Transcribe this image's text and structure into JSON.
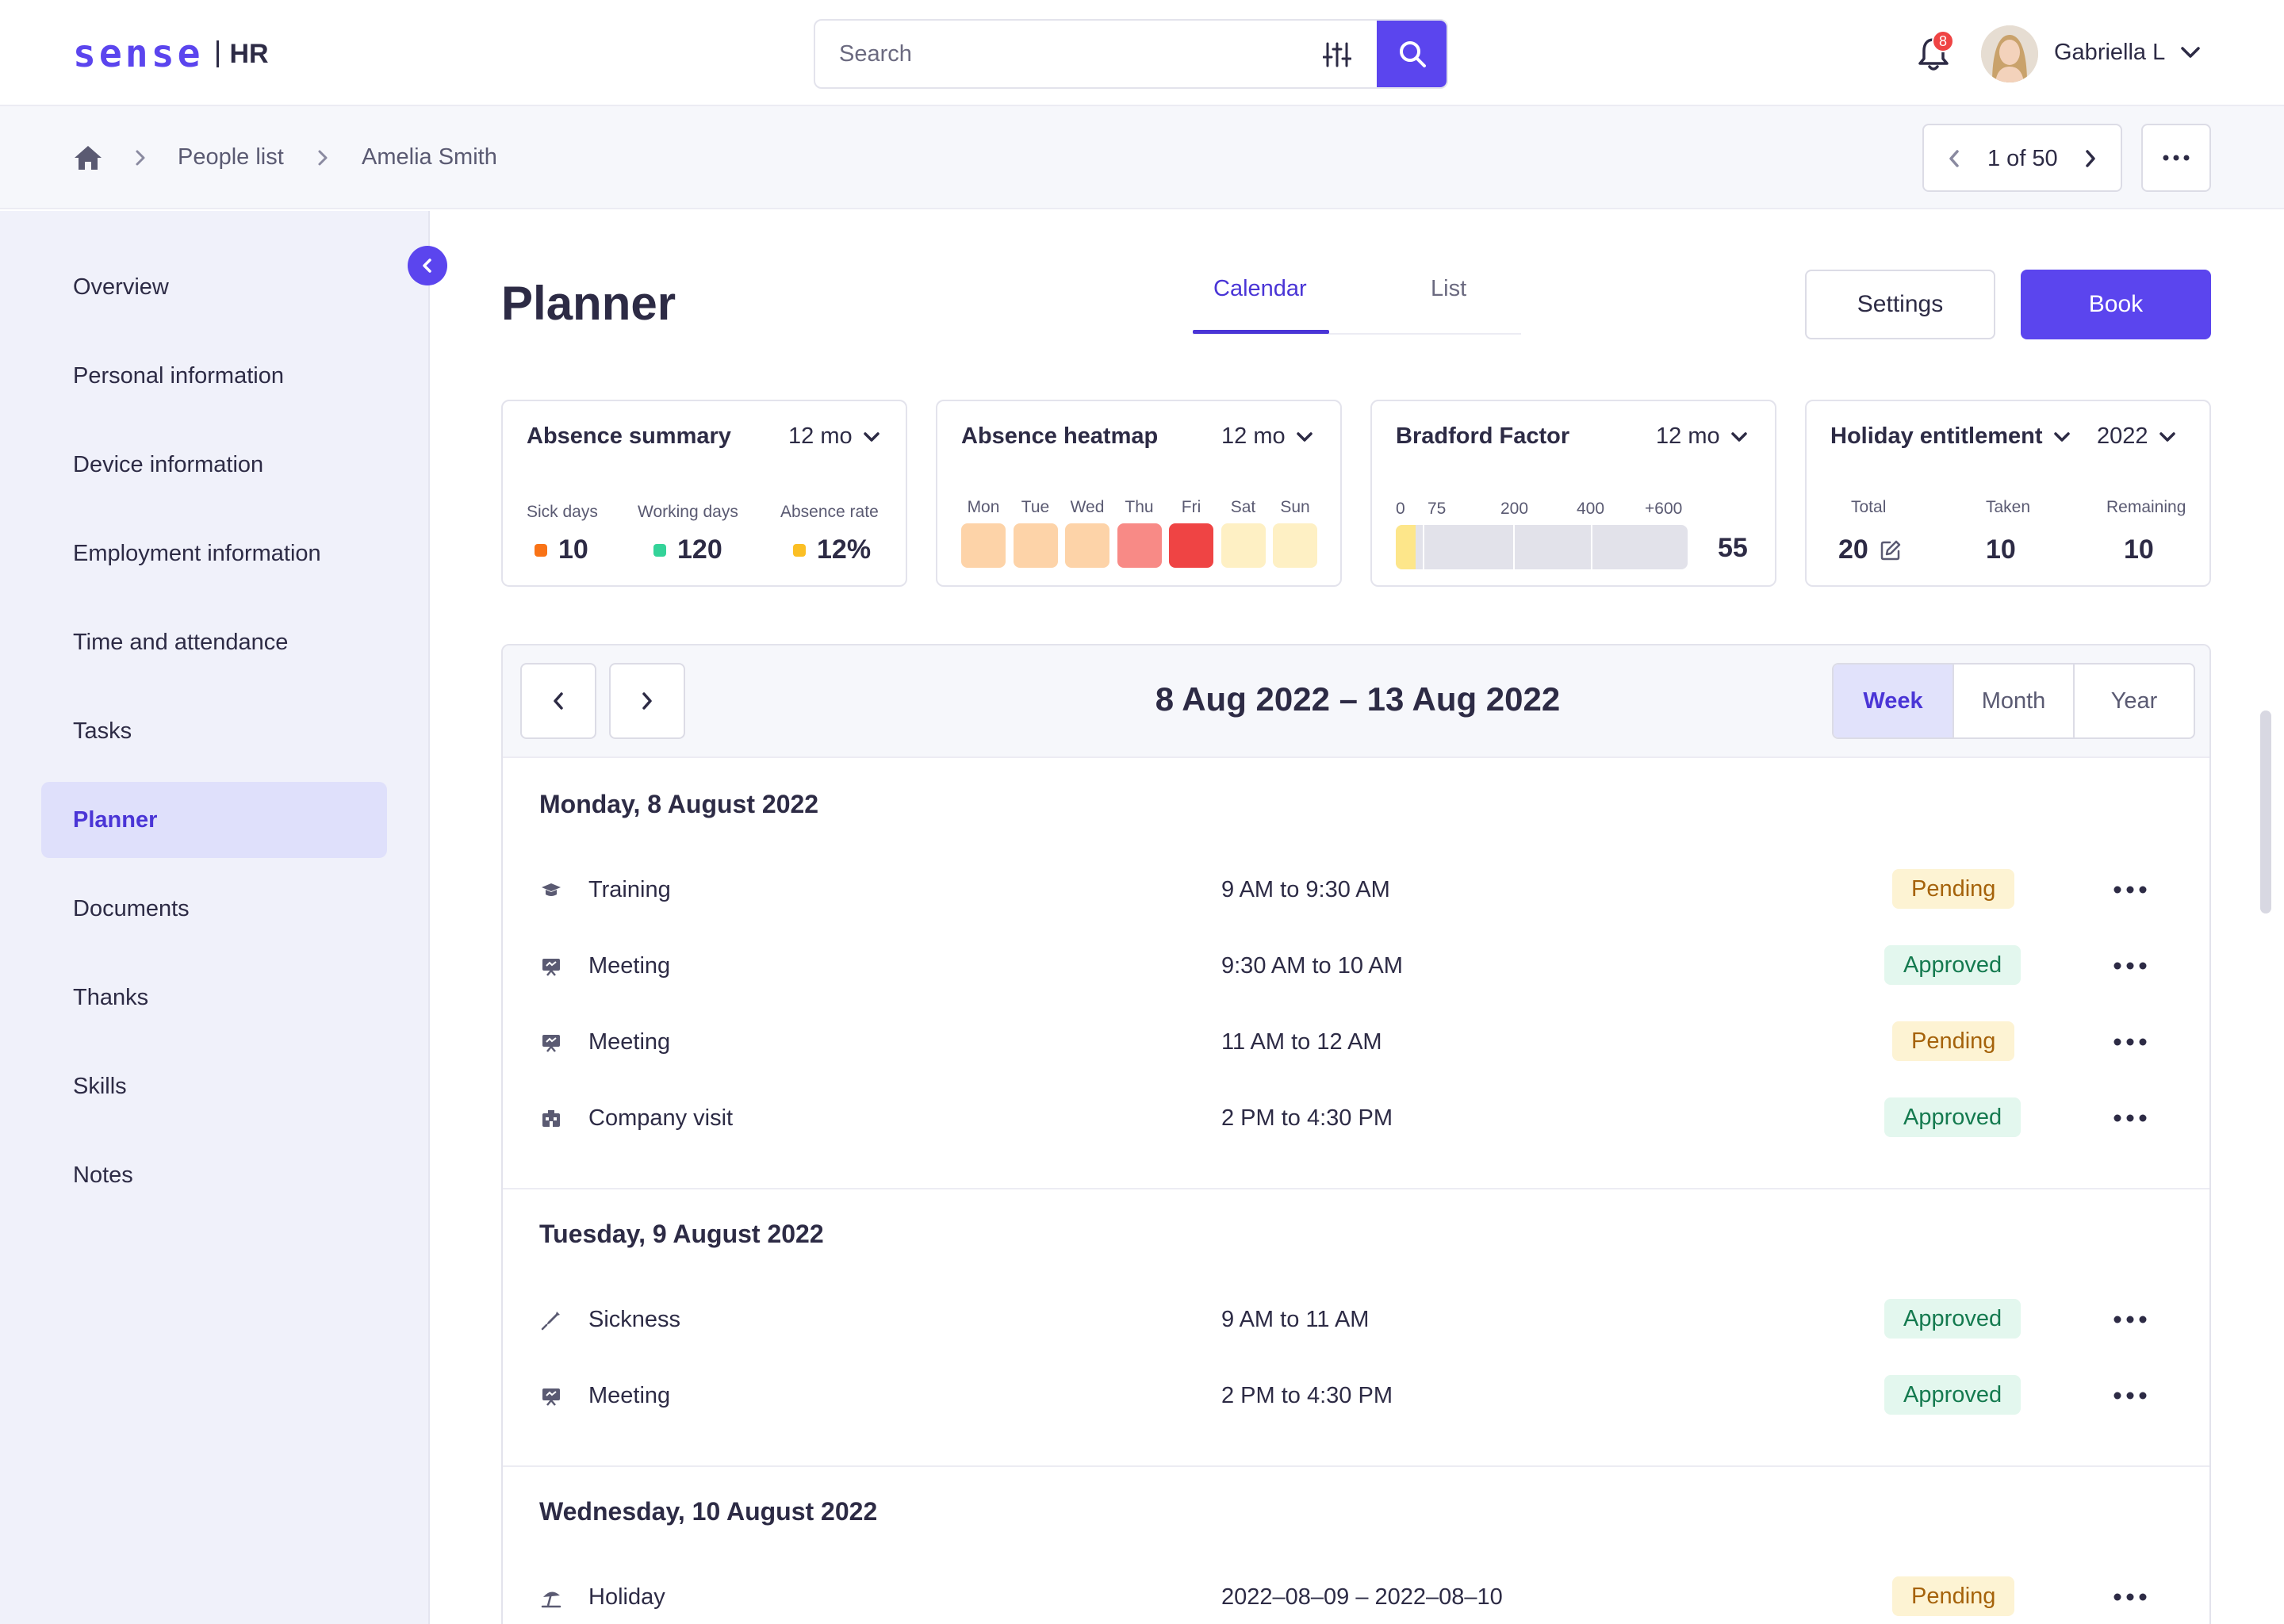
{
  "header": {
    "logo_mark": "sense",
    "logo_product": "HR",
    "search": {
      "placeholder": "Search",
      "value": ""
    },
    "notifications_count": "8",
    "user": {
      "name": "Gabriella L"
    }
  },
  "breadcrumb": {
    "items": [
      "People list",
      "Amelia Smith"
    ],
    "pager": "1 of 50"
  },
  "sidebar": {
    "items": [
      {
        "label": "Overview"
      },
      {
        "label": "Personal information"
      },
      {
        "label": "Device information"
      },
      {
        "label": "Employment information"
      },
      {
        "label": "Time and attendance"
      },
      {
        "label": "Tasks"
      },
      {
        "label": "Planner",
        "active": true
      },
      {
        "label": "Documents"
      },
      {
        "label": "Thanks"
      },
      {
        "label": "Skills"
      },
      {
        "label": "Notes"
      }
    ]
  },
  "page": {
    "title": "Planner",
    "tabs": [
      {
        "label": "Calendar",
        "active": true
      },
      {
        "label": "List"
      }
    ],
    "settings_label": "Settings",
    "book_label": "Book"
  },
  "cards": {
    "absence_summary": {
      "title": "Absence summary",
      "period": "12 mo",
      "stats": [
        {
          "label": "Sick days",
          "value": "10",
          "color": "#f97316"
        },
        {
          "label": "Working days",
          "value": "120",
          "color": "#34d399"
        },
        {
          "label": "Absence rate",
          "value": "12%",
          "color": "#fbbf24"
        }
      ]
    },
    "absence_heatmap": {
      "title": "Absence heatmap",
      "period": "12 mo",
      "days": [
        {
          "label": "Mon",
          "color": "#fdd3a8"
        },
        {
          "label": "Tue",
          "color": "#fdd3a8"
        },
        {
          "label": "Wed",
          "color": "#fdd3a8"
        },
        {
          "label": "Thu",
          "color": "#f88a86"
        },
        {
          "label": "Fri",
          "color": "#ef4444"
        },
        {
          "label": "Sat",
          "color": "#fef0c4"
        },
        {
          "label": "Sun",
          "color": "#fef0c4"
        }
      ]
    },
    "bradford_factor": {
      "title": "Bradford Factor",
      "period": "12 mo",
      "scale_labels": [
        "0",
        "75",
        "200",
        "400",
        "+600"
      ],
      "value": "55",
      "level": 55
    },
    "holiday_entitlement": {
      "title": "Holiday entitlement",
      "year": "2022",
      "stats": [
        {
          "label": "Total",
          "value": "20"
        },
        {
          "label": "Taken",
          "value": "10"
        },
        {
          "label": "Remaining",
          "value": "10"
        }
      ]
    }
  },
  "calendar": {
    "range": "8 Aug 2022 – 13 Aug 2022",
    "views": [
      {
        "label": "Week",
        "active": true
      },
      {
        "label": "Month"
      },
      {
        "label": "Year"
      }
    ],
    "days": [
      {
        "title": "Monday, 8 August 2022",
        "events": [
          {
            "name": "Training",
            "time": "9 AM to 9:30 AM",
            "status": "Pending",
            "icon": "graduation-cap-icon"
          },
          {
            "name": "Meeting",
            "time": "9:30 AM to 10 AM",
            "status": "Approved",
            "icon": "presentation-icon"
          },
          {
            "name": "Meeting",
            "time": "11 AM to 12 AM",
            "status": "Pending",
            "icon": "presentation-icon"
          },
          {
            "name": "Company visit",
            "time": "2 PM to 4:30 PM",
            "status": "Approved",
            "icon": "building-icon"
          }
        ]
      },
      {
        "title": "Tuesday, 9 August 2022",
        "events": [
          {
            "name": "Sickness",
            "time": "9 AM to 11 AM",
            "status": "Approved",
            "icon": "syringe-icon"
          },
          {
            "name": "Meeting",
            "time": "2 PM to 4:30 PM",
            "status": "Approved",
            "icon": "presentation-icon"
          }
        ]
      },
      {
        "title": "Wednesday, 10 August 2022",
        "events": [
          {
            "name": "Holiday",
            "time": "2022–08–09 – 2022–08–10",
            "status": "Pending",
            "icon": "beach-umbrella-icon"
          }
        ]
      }
    ]
  }
}
